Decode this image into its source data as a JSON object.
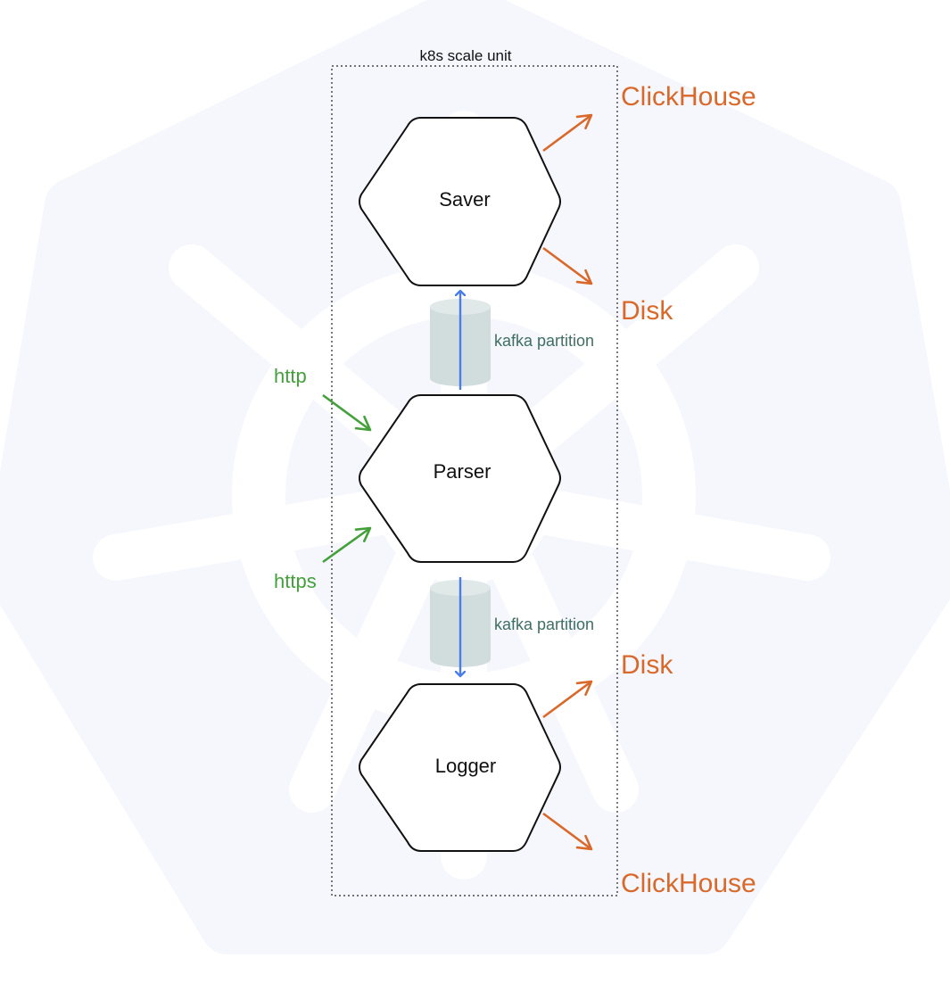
{
  "colors": {
    "background": "#ffffff",
    "watermark": "#f5f7fd",
    "watermark_inner": "#ffffff",
    "node_stroke": "#111111",
    "node_fill": "#ffffff",
    "queue_fill": "#d1dcdc",
    "queue_label": "#3f6f62",
    "flow_arrow": "#4a7de9",
    "sink": "#d9692a",
    "source": "#43a03b",
    "boundary": "#222222"
  },
  "background_icon": "kubernetes-helm-wheel-watermark",
  "scale_unit": {
    "label": "k8s scale unit"
  },
  "services": [
    {
      "id": "saver",
      "label": "Saver"
    },
    {
      "id": "parser",
      "label": "Parser"
    },
    {
      "id": "logger",
      "label": "Logger"
    }
  ],
  "queues": [
    {
      "id": "queue-parser-to-saver",
      "label": "kafka partition"
    },
    {
      "id": "queue-parser-to-logger",
      "label": "kafka partition"
    }
  ],
  "inputs": [
    {
      "id": "http",
      "label": "http"
    },
    {
      "id": "https",
      "label": "https"
    }
  ],
  "outputs": [
    {
      "id": "saver-clickhouse",
      "label": "ClickHouse"
    },
    {
      "id": "saver-disk",
      "label": "Disk"
    },
    {
      "id": "logger-disk",
      "label": "Disk"
    },
    {
      "id": "logger-clickhouse",
      "label": "ClickHouse"
    }
  ]
}
